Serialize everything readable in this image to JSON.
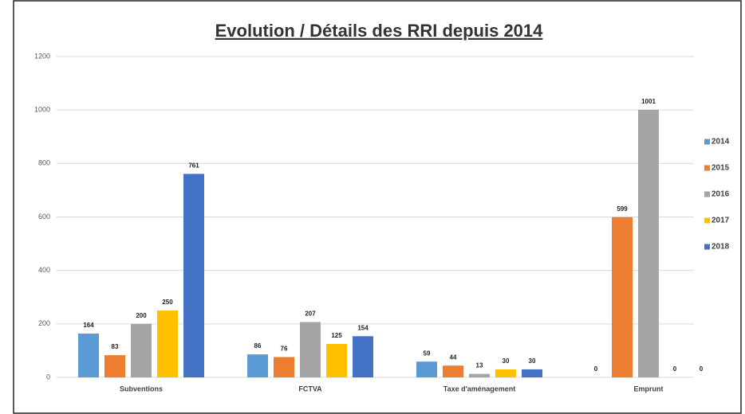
{
  "chart_data": {
    "type": "bar",
    "title": "Evolution / Détails des RRI depuis 2014",
    "categories": [
      "Subventions",
      "FCTVA",
      "Taxe d'aménagement",
      "Emprunt"
    ],
    "series": [
      {
        "name": "2014",
        "color": "#5b9bd5",
        "values": [
          164,
          86,
          59,
          0
        ]
      },
      {
        "name": "2015",
        "color": "#ed7d31",
        "values": [
          83,
          76,
          44,
          599
        ]
      },
      {
        "name": "2016",
        "color": "#a5a5a5",
        "values": [
          200,
          207,
          13,
          1001
        ]
      },
      {
        "name": "2017",
        "color": "#ffc000",
        "values": [
          250,
          125,
          30,
          0
        ]
      },
      {
        "name": "2018",
        "color": "#4472c4",
        "values": [
          761,
          154,
          30,
          0
        ]
      }
    ],
    "ylim": [
      0,
      1200
    ],
    "yticks": [
      0,
      200,
      400,
      600,
      800,
      1000,
      1200
    ],
    "grid": true,
    "legend": "right"
  }
}
